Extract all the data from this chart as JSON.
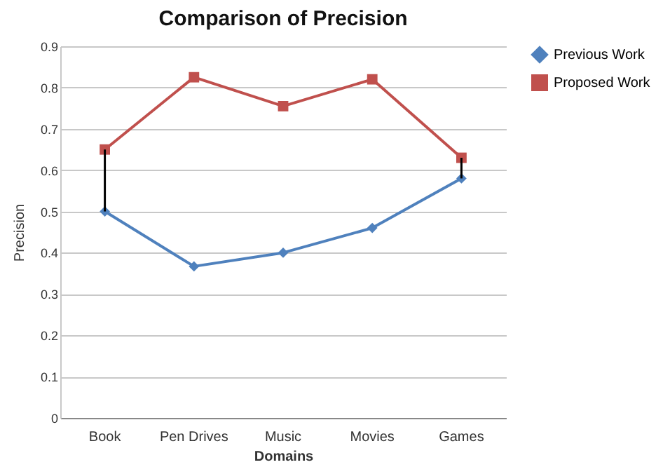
{
  "chart_data": {
    "type": "line",
    "title": "Comparison of Precision",
    "xlabel": "Domains",
    "ylabel": "Precision",
    "categories": [
      "Book",
      "Pen Drives",
      "Music",
      "Movies",
      "Games"
    ],
    "series": [
      {
        "name": "Previous Work",
        "color": "#4f81bd",
        "marker": "diamond",
        "values": [
          0.5,
          0.367,
          0.4,
          0.46,
          0.58
        ],
        "errors": [
          [
            0.5,
            0.65
          ],
          null,
          null,
          null,
          [
            0.58,
            0.63
          ]
        ]
      },
      {
        "name": "Proposed Work",
        "color": "#c0504d",
        "marker": "square",
        "values": [
          0.65,
          0.825,
          0.755,
          0.82,
          0.63
        ]
      }
    ],
    "ylim": [
      0,
      0.9
    ],
    "yticks": [
      0,
      0.1,
      0.2,
      0.3,
      0.4,
      0.5,
      0.6,
      0.7,
      0.8,
      0.9
    ],
    "grid": "y",
    "legend": "right"
  }
}
